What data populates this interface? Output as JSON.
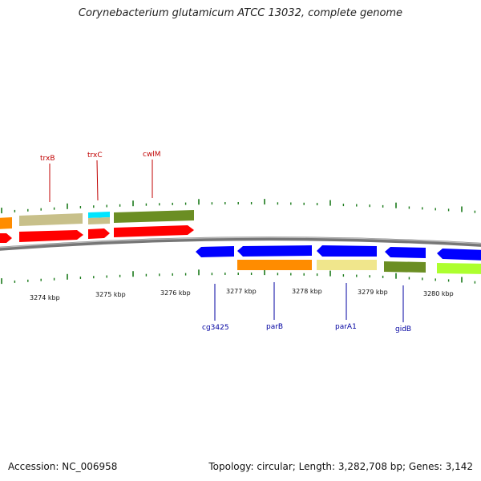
{
  "header": {
    "title": "Corynebacterium glutamicum ATCC 13032, complete genome"
  },
  "footer": {
    "accession": "Accession: NC_006958",
    "summary": "Topology: circular; Length: 3,282,708 bp; Genes: 3,142"
  },
  "scale": {
    "unit": "kbp",
    "labels": [
      "3274 kbp",
      "3275 kbp",
      "3276 kbp",
      "3277 kbp",
      "3278 kbp",
      "3279 kbp",
      "3280 kbp"
    ]
  },
  "colors": {
    "red": "#ff0000",
    "olive": "#6b8e23",
    "khaki": "#c8c08a",
    "cyan": "#00e5ff",
    "orange": "#ff8c00",
    "blue": "#0000ff",
    "palegold": "#f0e68c",
    "lime": "#adff2f",
    "backbone": "#808080",
    "tick": "#1a7a1a"
  },
  "labels": {
    "top": [
      "trxB",
      "trxC",
      "cwlM"
    ],
    "bottom": [
      "cg3425",
      "parB",
      "parA1",
      "gidB"
    ]
  }
}
